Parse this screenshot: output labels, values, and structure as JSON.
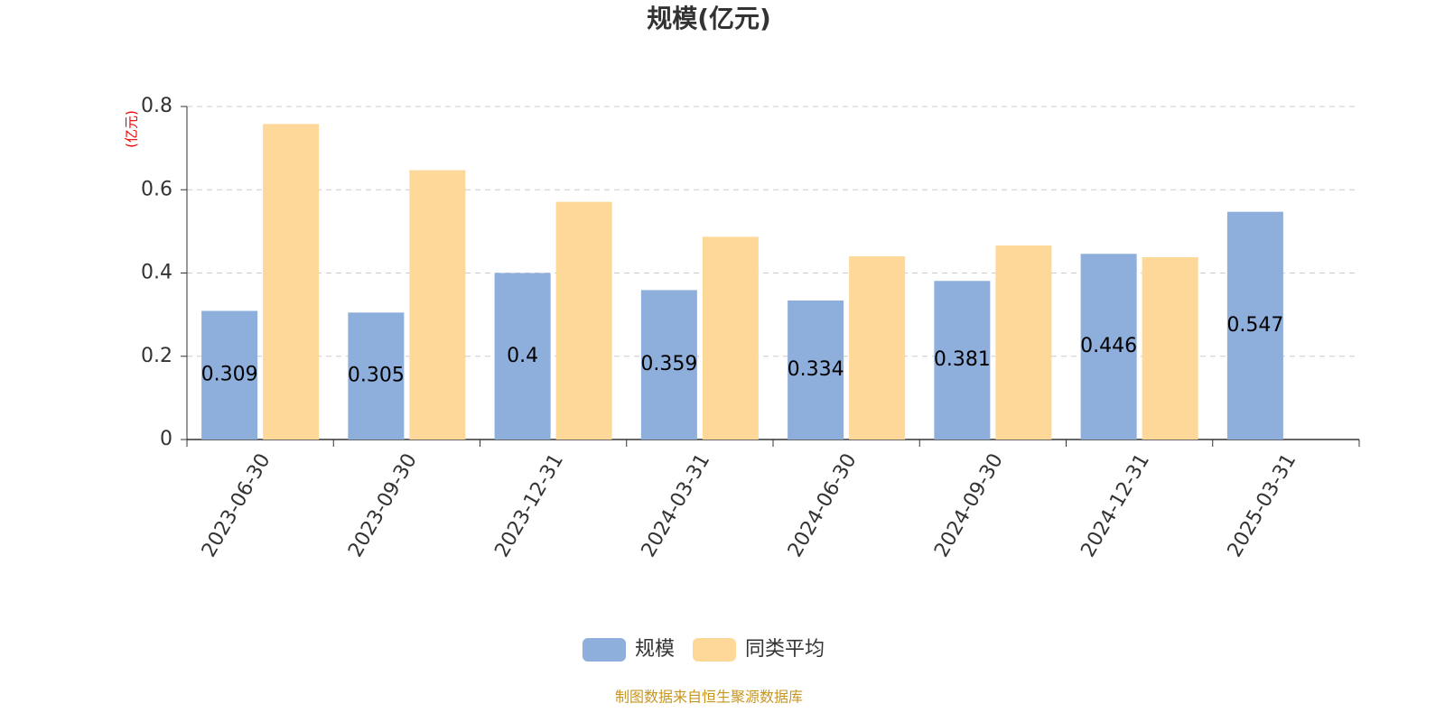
{
  "chart_data": {
    "type": "bar",
    "title": "规模(亿元)",
    "y_unit": "(亿元)",
    "source": "制图数据来自恒生聚源数据库",
    "categories": [
      "2023-06-30",
      "2023-09-30",
      "2023-12-31",
      "2024-03-31",
      "2024-06-30",
      "2024-09-30",
      "2024-12-31",
      "2025-03-31"
    ],
    "series": [
      {
        "name": "规模",
        "color": "#8eaedb",
        "values": [
          0.309,
          0.305,
          0.4,
          0.359,
          0.334,
          0.381,
          0.446,
          0.547
        ],
        "show_labels": true
      },
      {
        "name": "同类平均",
        "color": "#fed899",
        "values": [
          0.758,
          0.647,
          0.571,
          0.487,
          0.44,
          0.466,
          0.438,
          null
        ],
        "show_labels": false
      }
    ],
    "ylim": [
      0,
      0.8
    ],
    "yticks": [
      0,
      0.2,
      0.4,
      0.6,
      0.8
    ],
    "grid": true,
    "legend": "bottom"
  }
}
